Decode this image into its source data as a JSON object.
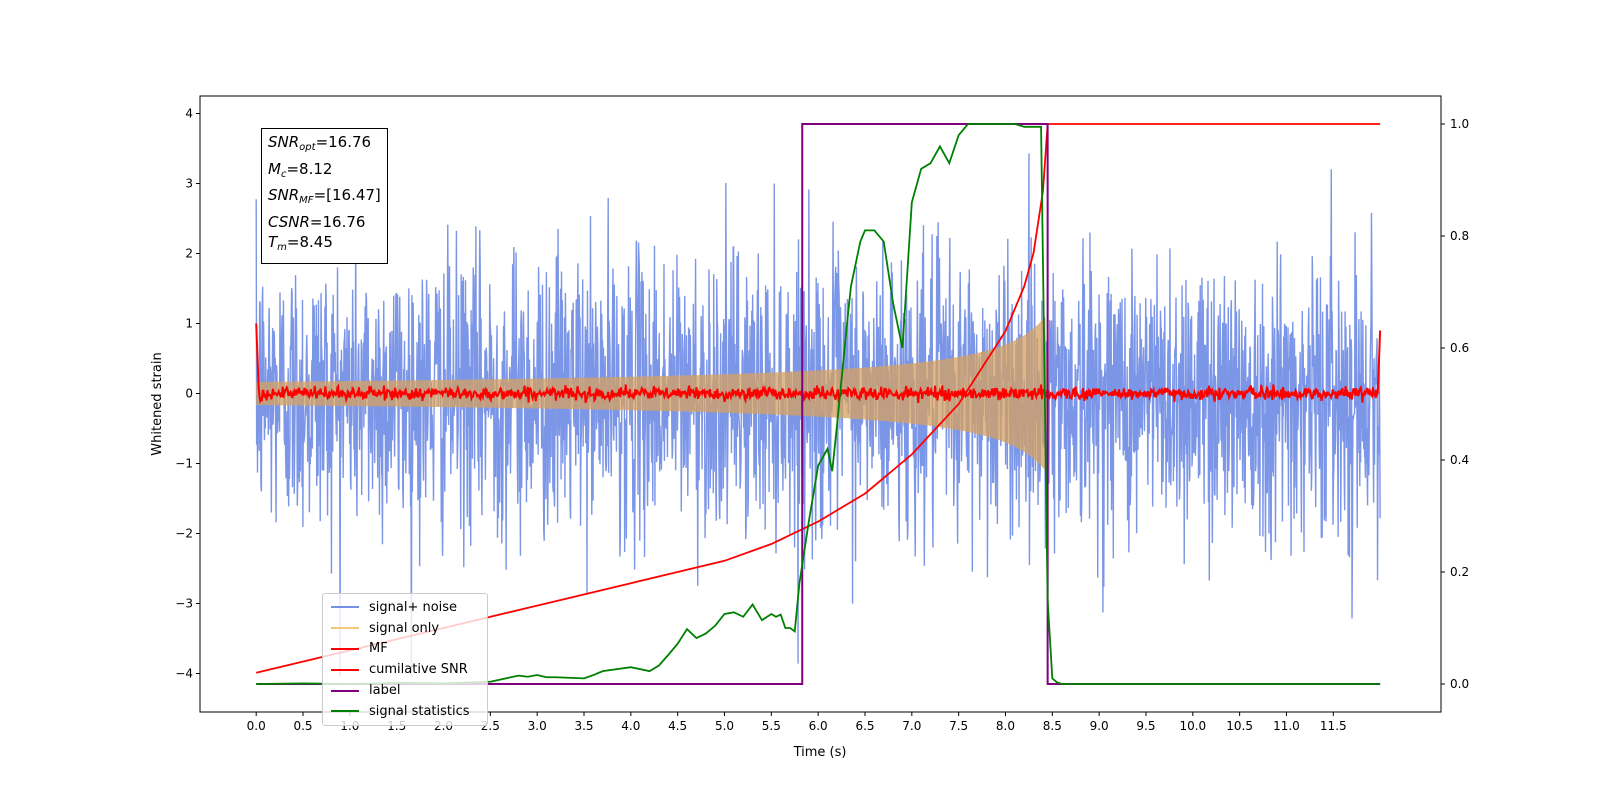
{
  "chart_data": {
    "type": "line",
    "xlabel": "Time (s)",
    "ylabel": "Whitened strain",
    "xlim": [
      -0.6,
      12.65
    ],
    "ylim": [
      -4.55,
      4.25
    ],
    "ylim_right": [
      -0.05,
      1.05
    ],
    "x_ticks": [
      "0.0",
      "0.5",
      "1.0",
      "1.5",
      "2.0",
      "2.5",
      "3.0",
      "3.5",
      "4.0",
      "4.5",
      "5.0",
      "5.5",
      "6.0",
      "6.5",
      "7.0",
      "7.5",
      "8.0",
      "8.5",
      "9.0",
      "9.5",
      "10.0",
      "10.5",
      "11.0",
      "11.5"
    ],
    "y_ticks": [
      "4",
      "3",
      "2",
      "1",
      "0",
      "−1",
      "−2",
      "−3",
      "−4"
    ],
    "y_ticks_right": [
      "1.0",
      "0.8",
      "0.6",
      "0.4",
      "0.2",
      "0.0"
    ],
    "annotation": {
      "snr_opt": "16.76",
      "mc": "8.12",
      "snr_mf": "[16.47]",
      "csnr": "16.76",
      "tm": "8.45"
    },
    "legend_placement": "lower-left",
    "series": [
      {
        "name": "signal+ noise",
        "color": "#7590e6",
        "axis": "left",
        "description_noise_std": 1.0,
        "x_range": [
          0.0,
          12.0
        ]
      },
      {
        "name": "signal only",
        "color": "#f5c77a",
        "axis": "left",
        "chirp_merger_time": 8.45,
        "amplitude_at_merger": 1.15
      },
      {
        "name": "MF",
        "color": "#ff0000",
        "axis": "left",
        "x_range": [
          0.0,
          12.0
        ],
        "baseline": 0.0
      },
      {
        "name": "cumilative SNR",
        "color": "#ff0000",
        "axis": "right",
        "x": [
          0.0,
          1.0,
          2.0,
          3.0,
          4.0,
          5.0,
          5.5,
          6.0,
          6.5,
          7.0,
          7.5,
          8.0,
          8.2,
          8.3,
          8.4,
          8.45,
          12.0
        ],
        "y": [
          0.02,
          0.06,
          0.1,
          0.14,
          0.18,
          0.22,
          0.25,
          0.29,
          0.34,
          0.41,
          0.5,
          0.63,
          0.71,
          0.77,
          0.88,
          1.0,
          1.0
        ]
      },
      {
        "name": "label",
        "color": "#800080",
        "axis": "right",
        "x": [
          0.0,
          5.83,
          5.83,
          8.45,
          8.45,
          12.0
        ],
        "y": [
          0.0,
          0.0,
          1.0,
          1.0,
          0.0,
          0.0
        ]
      },
      {
        "name": "signal statistics",
        "color": "#008000",
        "axis": "right",
        "x": [
          0.0,
          0.5,
          1.0,
          1.5,
          2.0,
          2.5,
          2.8,
          2.9,
          3.0,
          3.1,
          3.2,
          3.5,
          3.6,
          3.7,
          4.0,
          4.2,
          4.3,
          4.4,
          4.5,
          4.6,
          4.7,
          4.8,
          4.9,
          5.0,
          5.1,
          5.2,
          5.3,
          5.4,
          5.5,
          5.55,
          5.6,
          5.65,
          5.7,
          5.75,
          5.8,
          5.9,
          6.0,
          6.1,
          6.15,
          6.2,
          6.3,
          6.35,
          6.45,
          6.5,
          6.6,
          6.7,
          6.8,
          6.9,
          7.0,
          7.1,
          7.2,
          7.3,
          7.4,
          7.5,
          7.6,
          7.7,
          7.8,
          7.9,
          8.0,
          8.1,
          8.2,
          8.3,
          8.38,
          8.45,
          8.5,
          8.55,
          8.6,
          9.0,
          10.0,
          11.0,
          12.0
        ],
        "y": [
          0.0,
          0.001,
          0.0,
          0.002,
          0.001,
          0.004,
          0.015,
          0.013,
          0.016,
          0.012,
          0.012,
          0.01,
          0.016,
          0.023,
          0.03,
          0.023,
          0.033,
          0.052,
          0.072,
          0.098,
          0.082,
          0.09,
          0.104,
          0.125,
          0.128,
          0.12,
          0.142,
          0.114,
          0.125,
          0.12,
          0.124,
          0.1,
          0.1,
          0.094,
          0.18,
          0.29,
          0.39,
          0.42,
          0.38,
          0.46,
          0.63,
          0.71,
          0.79,
          0.81,
          0.81,
          0.79,
          0.68,
          0.6,
          0.86,
          0.92,
          0.93,
          0.96,
          0.93,
          0.98,
          1.0,
          1.0,
          1.0,
          1.0,
          1.0,
          1.0,
          0.995,
          0.995,
          0.995,
          0.15,
          0.01,
          0.003,
          0.0,
          0.0,
          0.0,
          0.0,
          0.0
        ]
      }
    ]
  }
}
